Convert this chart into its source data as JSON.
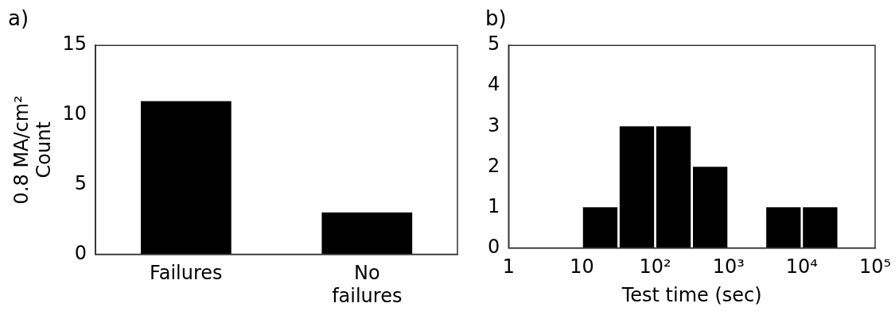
{
  "chart_data": [
    {
      "type": "bar",
      "title": "a)",
      "ylabel": "0.8 MA/cm²\nCount",
      "categories": [
        "Failures",
        "No failures"
      ],
      "values": [
        11,
        3
      ],
      "color": "#000000",
      "ylim": [
        0,
        15
      ],
      "yticks": [
        0,
        5,
        10,
        15
      ]
    },
    {
      "type": "histogram",
      "title": "b)",
      "xlabel": "Test time (sec)",
      "bins": [
        10,
        31.6,
        100,
        316,
        1000,
        3162,
        10000,
        31623
      ],
      "values": [
        1,
        3,
        3,
        2,
        0,
        1,
        1
      ],
      "color": "#000000",
      "log": "x",
      "xlim": [
        1,
        100000
      ],
      "xticks": [
        {
          "value": 1,
          "label": "1"
        },
        {
          "value": 10,
          "label": "10"
        },
        {
          "value": 100,
          "label": "10²"
        },
        {
          "value": 1000,
          "label": "10³"
        },
        {
          "value": 10000,
          "label": "10⁴"
        },
        {
          "value": 100000,
          "label": "10⁵"
        }
      ],
      "ylim": [
        0,
        5
      ],
      "yticks": [
        0,
        1,
        2,
        3,
        4,
        5
      ]
    }
  ]
}
